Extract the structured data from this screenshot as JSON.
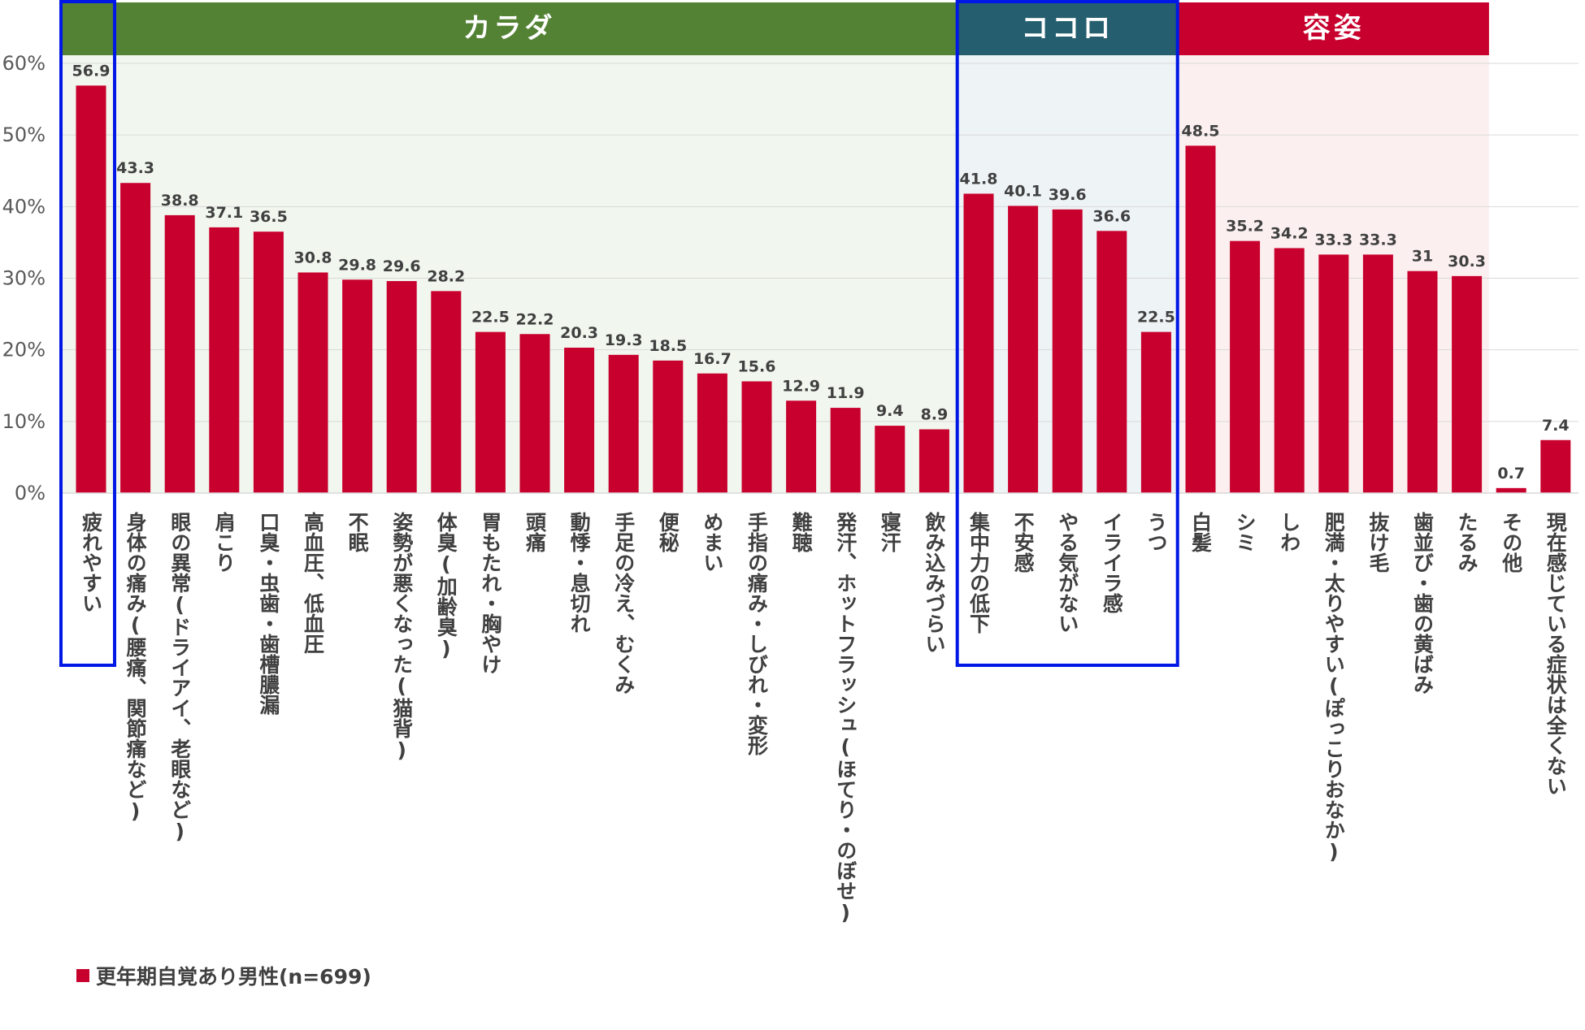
{
  "colors": {
    "bar": "#c8002d",
    "karada": "#548235",
    "kokoro": "#255e6e",
    "yoshi": "#c8002d",
    "karada_bg": "#f1f7ee",
    "kokoro_bg": "#eef3f6",
    "yoshi_bg": "#fbf0ef",
    "highlight": "#0018e6",
    "grid": "#d9d9d9"
  },
  "legend": {
    "label": "更年期自覚あり男性(n=699)"
  },
  "chart_data": {
    "type": "bar",
    "ylim": [
      0,
      60
    ],
    "yticks": [
      "0%",
      "10%",
      "20%",
      "30%",
      "40%",
      "50%",
      "60%"
    ],
    "series": [
      {
        "name": "更年期自覚あり男性(n=699)"
      }
    ],
    "groups": [
      {
        "label": "カラダ",
        "from": 0,
        "to": 19,
        "color_key": "karada"
      },
      {
        "label": "ココロ",
        "from": 20,
        "to": 24,
        "color_key": "kokoro"
      },
      {
        "label": "容姿",
        "from": 25,
        "to": 31,
        "color_key": "yoshi"
      }
    ],
    "highlighted_ranges": [
      [
        0,
        0
      ],
      [
        20,
        24
      ]
    ],
    "categories": [
      "疲れやすい",
      "身体の痛み(腰痛、関節痛など)",
      "眼の異常(ドライアイ、老眼など)",
      "肩こり",
      "口臭・虫歯・歯槽膿漏",
      "高血圧、低血圧",
      "不眠",
      "姿勢が悪くなった(猫背)",
      "体臭(加齢臭)",
      "胃もたれ・胸やけ",
      "頭痛",
      "動悸・息切れ",
      "手足の冷え、むくみ",
      "便秘",
      "めまい",
      "手指の痛み・しびれ・変形",
      "難聴",
      "発汗、ホットフラッシュ(ほてり・のぼせ)",
      "寝汗",
      "飲み込みづらい",
      "集中力の低下",
      "不安感",
      "やる気がない",
      "イライラ感",
      "うつ",
      "白髪",
      "シミ",
      "しわ",
      "肥満・太りやすい(ぽっこりおなか)",
      "抜け毛",
      "歯並び・歯の黄ばみ",
      "たるみ",
      "その他",
      "現在感じている症状は全くない"
    ],
    "values": [
      56.9,
      43.3,
      38.8,
      37.1,
      36.5,
      30.8,
      29.8,
      29.6,
      28.2,
      22.5,
      22.2,
      20.3,
      19.3,
      18.5,
      16.7,
      15.6,
      12.9,
      11.9,
      9.4,
      8.9,
      41.8,
      40.1,
      39.6,
      36.6,
      22.5,
      48.5,
      35.2,
      34.2,
      33.3,
      33.3,
      31,
      30.3,
      0.7,
      7.4
    ],
    "data_labels": [
      "56.9",
      "43.3",
      "38.8",
      "37.1",
      "36.5",
      "30.8",
      "29.8",
      "29.6",
      "28.2",
      "22.5",
      "22.2",
      "20.3",
      "19.3",
      "18.5",
      "16.7",
      "15.6",
      "12.9",
      "11.9",
      "9.4",
      "8.9",
      "41.8",
      "40.1",
      "39.6",
      "36.6",
      "22.5",
      "48.5",
      "35.2",
      "34.2",
      "33.3",
      "33.3",
      "31",
      "30.3",
      "0.7",
      "7.4"
    ]
  }
}
